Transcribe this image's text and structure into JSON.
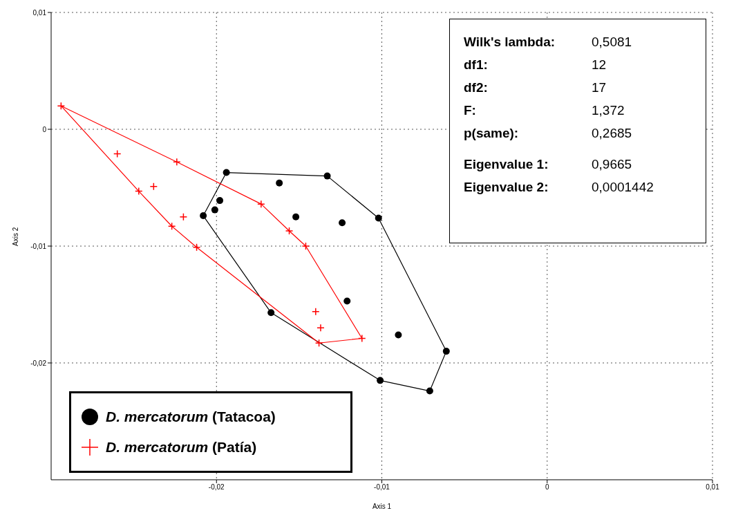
{
  "chart_data": {
    "type": "scatter",
    "xlabel": "Axis 1",
    "ylabel": "Axis 2",
    "xlim": [
      -0.03,
      0.01
    ],
    "ylim": [
      -0.03,
      0.01
    ],
    "xticks": [
      {
        "value": -0.02,
        "label": "-0,02"
      },
      {
        "value": -0.01,
        "label": "-0,01"
      },
      0,
      {
        "value": 0.01,
        "label": "0,01"
      }
    ],
    "yticks": [
      {
        "value": 0.01,
        "label": "0,01"
      },
      0,
      {
        "value": -0.01,
        "label": "-0,01"
      },
      {
        "value": -0.02,
        "label": "-0,02"
      }
    ],
    "grid": true,
    "legend": "bottom left",
    "annotations": [
      "Wilk's lambda: 0,5081",
      "df1: 12",
      "df2: 17",
      "F: 1,372",
      "p(same): 0,2685",
      "Eigenvalue 1: 0,9665",
      "Eigenvalue 2: 0,0001442"
    ],
    "series": [
      {
        "type": "line",
        "color": "#000000",
        "line_style": "solid",
        "x": [
          -0.0208,
          -0.0194,
          -0.0133,
          -0.0102,
          -0.0061
        ],
        "values": [
          -0.0074,
          -0.0037,
          -0.004,
          -0.0076,
          -0.019
        ]
      },
      {
        "type": "line",
        "color": "#000000",
        "line_style": "solid",
        "x": [
          -0.0208,
          -0.0167,
          -0.0101,
          -0.0071,
          -0.0061
        ],
        "values": [
          -0.0074,
          -0.0157,
          -0.0215,
          -0.0224,
          -0.019
        ]
      },
      {
        "type": "line",
        "color": "#ff0000",
        "line_style": "solid",
        "x": [
          -0.0294,
          -0.0224,
          -0.0173,
          -0.0156,
          -0.0146,
          -0.0112
        ],
        "values": [
          0.002,
          -0.0028,
          -0.0064,
          -0.0087,
          -0.01,
          -0.0179
        ]
      },
      {
        "type": "line",
        "color": "#ff0000",
        "line_style": "solid",
        "x": [
          -0.0294,
          -0.0247,
          -0.0227,
          -0.0212,
          -0.0138,
          -0.0112
        ],
        "values": [
          0.002,
          -0.0053,
          -0.0083,
          -0.0101,
          -0.0183,
          -0.0179
        ]
      },
      {
        "type": "scatter",
        "name": "D. mercatorum (Tatacoa)",
        "color": "#000000",
        "marker": "circle",
        "x": [
          -0.0194,
          -0.0133,
          -0.0162,
          -0.0198,
          -0.0201,
          -0.0208,
          -0.0152,
          -0.0124,
          -0.0102,
          -0.0121,
          -0.0167,
          -0.009,
          -0.0061,
          -0.0101,
          -0.0071
        ],
        "values": [
          -0.0037,
          -0.004,
          -0.0046,
          -0.0061,
          -0.0069,
          -0.0074,
          -0.0075,
          -0.008,
          -0.0076,
          -0.0147,
          -0.0157,
          -0.0176,
          -0.019,
          -0.0215,
          -0.0224
        ]
      },
      {
        "type": "scatter",
        "name": "D. mercatorum (Patía)",
        "color": "#ff0000",
        "marker": "cross",
        "x": [
          -0.0294,
          -0.026,
          -0.0224,
          -0.0247,
          -0.0238,
          -0.022,
          -0.0227,
          -0.0212,
          -0.0173,
          -0.0156,
          -0.0146,
          -0.014,
          -0.0137,
          -0.0138,
          -0.0112
        ],
        "values": [
          0.002,
          -0.0021,
          -0.0028,
          -0.0053,
          -0.0049,
          -0.0075,
          -0.0083,
          -0.0101,
          -0.0064,
          -0.0087,
          -0.01,
          -0.0156,
          -0.017,
          -0.0183,
          -0.0179
        ]
      }
    ]
  }
}
